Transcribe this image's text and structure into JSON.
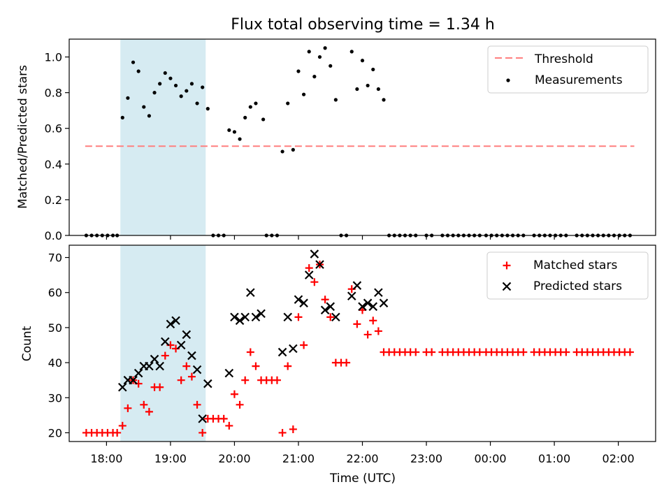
{
  "chart_data": [
    {
      "type": "scatter",
      "title": "Flux total observing time = 1.34 h",
      "ylabel": "Matched/Predicted stars",
      "xlabel": "",
      "ylim": [
        0,
        1.1
      ],
      "yticks": [
        0.0,
        0.2,
        0.4,
        0.6,
        0.8,
        1.0
      ],
      "ytick_labels": [
        "0.0",
        "0.2",
        "0.4",
        "0.6",
        "0.8",
        "1.0"
      ],
      "xlim": [
        "17:25",
        "02:35"
      ],
      "legend_position": "top-right",
      "shaded_interval": {
        "start": "18:13",
        "end": "19:33",
        "color": "#add8e6"
      },
      "series": [
        {
          "name": "Threshold",
          "kind": "dashed-line",
          "color": "#ff7f7f",
          "y": 0.5,
          "x_range": [
            "17:40",
            "02:15"
          ]
        },
        {
          "name": "Measurements",
          "kind": "points",
          "color": "#000000",
          "points": [
            [
              "17:41",
              0
            ],
            [
              "17:46",
              0
            ],
            [
              "17:51",
              0
            ],
            [
              "17:56",
              0
            ],
            [
              "18:01",
              0
            ],
            [
              "18:06",
              0
            ],
            [
              "18:10",
              0
            ],
            [
              "18:15",
              0.66
            ],
            [
              "18:20",
              0.77
            ],
            [
              "18:25",
              0.97
            ],
            [
              "18:30",
              0.92
            ],
            [
              "18:35",
              0.72
            ],
            [
              "18:40",
              0.67
            ],
            [
              "18:45",
              0.8
            ],
            [
              "18:50",
              0.85
            ],
            [
              "18:55",
              0.91
            ],
            [
              "19:00",
              0.88
            ],
            [
              "19:05",
              0.84
            ],
            [
              "19:10",
              0.78
            ],
            [
              "19:15",
              0.81
            ],
            [
              "19:20",
              0.85
            ],
            [
              "19:25",
              0.74
            ],
            [
              "19:30",
              0.83
            ],
            [
              "19:35",
              0.71
            ],
            [
              "19:40",
              0
            ],
            [
              "19:45",
              0
            ],
            [
              "19:50",
              0
            ],
            [
              "19:55",
              0.59
            ],
            [
              "20:00",
              0.58
            ],
            [
              "20:05",
              0.54
            ],
            [
              "20:10",
              0.66
            ],
            [
              "20:15",
              0.72
            ],
            [
              "20:20",
              0.74
            ],
            [
              "20:27",
              0.65
            ],
            [
              "20:30",
              0
            ],
            [
              "20:35",
              0
            ],
            [
              "20:40",
              0
            ],
            [
              "20:45",
              0.47
            ],
            [
              "20:50",
              0.74
            ],
            [
              "20:55",
              0.48
            ],
            [
              "21:00",
              0.92
            ],
            [
              "21:05",
              0.79
            ],
            [
              "21:10",
              1.03
            ],
            [
              "21:15",
              0.89
            ],
            [
              "21:20",
              1.0
            ],
            [
              "21:25",
              1.05
            ],
            [
              "21:30",
              0.95
            ],
            [
              "21:35",
              0.76
            ],
            [
              "21:40",
              0
            ],
            [
              "21:45",
              0
            ],
            [
              "21:50",
              1.03
            ],
            [
              "21:55",
              0.82
            ],
            [
              "22:00",
              0.98
            ],
            [
              "22:05",
              0.84
            ],
            [
              "22:10",
              0.93
            ],
            [
              "22:15",
              0.82
            ],
            [
              "22:20",
              0.76
            ],
            [
              "22:25",
              0
            ],
            [
              "22:30",
              0
            ],
            [
              "22:35",
              0
            ],
            [
              "22:40",
              0
            ],
            [
              "22:45",
              0
            ],
            [
              "22:50",
              0
            ],
            [
              "23:00",
              0
            ],
            [
              "23:05",
              0
            ],
            [
              "23:15",
              0
            ],
            [
              "23:20",
              0
            ],
            [
              "23:25",
              0
            ],
            [
              "23:30",
              0
            ],
            [
              "23:35",
              0
            ],
            [
              "23:40",
              0
            ],
            [
              "23:45",
              0
            ],
            [
              "23:50",
              0
            ],
            [
              "23:56",
              0
            ],
            [
              "00:01",
              0
            ],
            [
              "00:06",
              0
            ],
            [
              "00:11",
              0
            ],
            [
              "00:16",
              0
            ],
            [
              "00:21",
              0
            ],
            [
              "00:26",
              0
            ],
            [
              "00:31",
              0
            ],
            [
              "00:41",
              0
            ],
            [
              "00:46",
              0
            ],
            [
              "00:51",
              0
            ],
            [
              "00:56",
              0
            ],
            [
              "01:01",
              0
            ],
            [
              "01:06",
              0
            ],
            [
              "01:11",
              0
            ],
            [
              "01:21",
              0
            ],
            [
              "01:26",
              0
            ],
            [
              "01:31",
              0
            ],
            [
              "01:36",
              0
            ],
            [
              "01:41",
              0
            ],
            [
              "01:46",
              0
            ],
            [
              "01:51",
              0
            ],
            [
              "01:56",
              0
            ],
            [
              "02:01",
              0
            ],
            [
              "02:06",
              0
            ],
            [
              "02:11",
              0
            ]
          ]
        }
      ]
    },
    {
      "type": "scatter",
      "title": "",
      "ylabel": "Count",
      "xlabel": "Time (UTC)",
      "ylim": [
        17.5,
        73.5
      ],
      "yticks": [
        20,
        30,
        40,
        50,
        60,
        70
      ],
      "ytick_labels": [
        "20",
        "30",
        "40",
        "50",
        "60",
        "70"
      ],
      "xlim": [
        "17:25",
        "02:35"
      ],
      "xticks": [
        "18:00",
        "19:00",
        "20:00",
        "21:00",
        "22:00",
        "23:00",
        "00:00",
        "01:00",
        "02:00"
      ],
      "xtick_labels": [
        "18:00",
        "19:00",
        "20:00",
        "21:00",
        "22:00",
        "23:00",
        "00:00",
        "01:00",
        "02:00"
      ],
      "legend_position": "top-right",
      "shaded_interval": {
        "start": "18:13",
        "end": "19:33",
        "color": "#add8e6"
      },
      "series": [
        {
          "name": "Matched stars",
          "kind": "plus",
          "color": "#ff0000",
          "points": [
            [
              "17:41",
              20
            ],
            [
              "17:46",
              20
            ],
            [
              "17:51",
              20
            ],
            [
              "17:56",
              20
            ],
            [
              "18:01",
              20
            ],
            [
              "18:06",
              20
            ],
            [
              "18:10",
              20
            ],
            [
              "18:15",
              22
            ],
            [
              "18:20",
              27
            ],
            [
              "18:25",
              35
            ],
            [
              "18:30",
              34
            ],
            [
              "18:35",
              28
            ],
            [
              "18:40",
              26
            ],
            [
              "18:45",
              33
            ],
            [
              "18:50",
              33
            ],
            [
              "18:55",
              42
            ],
            [
              "19:00",
              45
            ],
            [
              "19:05",
              44
            ],
            [
              "19:10",
              35
            ],
            [
              "19:15",
              39
            ],
            [
              "19:20",
              36
            ],
            [
              "19:25",
              28
            ],
            [
              "19:30",
              20
            ],
            [
              "19:35",
              24
            ],
            [
              "19:40",
              24
            ],
            [
              "19:45",
              24
            ],
            [
              "19:50",
              24
            ],
            [
              "19:55",
              22
            ],
            [
              "20:00",
              31
            ],
            [
              "20:05",
              28
            ],
            [
              "20:10",
              35
            ],
            [
              "20:15",
              43
            ],
            [
              "20:20",
              39
            ],
            [
              "20:25",
              35
            ],
            [
              "20:30",
              35
            ],
            [
              "20:35",
              35
            ],
            [
              "20:40",
              35
            ],
            [
              "20:45",
              20
            ],
            [
              "20:50",
              39
            ],
            [
              "20:55",
              21
            ],
            [
              "21:00",
              53
            ],
            [
              "21:05",
              45
            ],
            [
              "21:10",
              67
            ],
            [
              "21:15",
              63
            ],
            [
              "21:20",
              68
            ],
            [
              "21:25",
              58
            ],
            [
              "21:30",
              53
            ],
            [
              "21:35",
              40
            ],
            [
              "21:40",
              40
            ],
            [
              "21:45",
              40
            ],
            [
              "21:50",
              61
            ],
            [
              "21:55",
              51
            ],
            [
              "22:00",
              55
            ],
            [
              "22:05",
              48
            ],
            [
              "22:10",
              52
            ],
            [
              "22:15",
              49
            ],
            [
              "22:20",
              43
            ],
            [
              "22:25",
              43
            ],
            [
              "22:30",
              43
            ],
            [
              "22:35",
              43
            ],
            [
              "22:40",
              43
            ],
            [
              "22:45",
              43
            ],
            [
              "22:50",
              43
            ],
            [
              "23:00",
              43
            ],
            [
              "23:05",
              43
            ],
            [
              "23:15",
              43
            ],
            [
              "23:20",
              43
            ],
            [
              "23:25",
              43
            ],
            [
              "23:30",
              43
            ],
            [
              "23:35",
              43
            ],
            [
              "23:40",
              43
            ],
            [
              "23:45",
              43
            ],
            [
              "23:50",
              43
            ],
            [
              "23:56",
              43
            ],
            [
              "00:01",
              43
            ],
            [
              "00:06",
              43
            ],
            [
              "00:11",
              43
            ],
            [
              "00:16",
              43
            ],
            [
              "00:21",
              43
            ],
            [
              "00:26",
              43
            ],
            [
              "00:31",
              43
            ],
            [
              "00:41",
              43
            ],
            [
              "00:46",
              43
            ],
            [
              "00:51",
              43
            ],
            [
              "00:56",
              43
            ],
            [
              "01:01",
              43
            ],
            [
              "01:06",
              43
            ],
            [
              "01:11",
              43
            ],
            [
              "01:21",
              43
            ],
            [
              "01:26",
              43
            ],
            [
              "01:31",
              43
            ],
            [
              "01:36",
              43
            ],
            [
              "01:41",
              43
            ],
            [
              "01:46",
              43
            ],
            [
              "01:51",
              43
            ],
            [
              "01:56",
              43
            ],
            [
              "02:01",
              43
            ],
            [
              "02:06",
              43
            ],
            [
              "02:11",
              43
            ]
          ]
        },
        {
          "name": "Predicted stars",
          "kind": "x",
          "color": "#000000",
          "points": [
            [
              "18:15",
              33
            ],
            [
              "18:20",
              35
            ],
            [
              "18:25",
              35
            ],
            [
              "18:30",
              37
            ],
            [
              "18:35",
              39
            ],
            [
              "18:40",
              39
            ],
            [
              "18:45",
              41
            ],
            [
              "18:50",
              39
            ],
            [
              "18:55",
              46
            ],
            [
              "19:00",
              51
            ],
            [
              "19:05",
              52
            ],
            [
              "19:10",
              45
            ],
            [
              "19:15",
              48
            ],
            [
              "19:20",
              42
            ],
            [
              "19:25",
              38
            ],
            [
              "19:30",
              24
            ],
            [
              "19:35",
              34
            ],
            [
              "19:55",
              37
            ],
            [
              "20:00",
              53
            ],
            [
              "20:05",
              52
            ],
            [
              "20:10",
              53
            ],
            [
              "20:15",
              60
            ],
            [
              "20:20",
              53
            ],
            [
              "20:25",
              54
            ],
            [
              "20:45",
              43
            ],
            [
              "20:50",
              53
            ],
            [
              "20:55",
              44
            ],
            [
              "21:00",
              58
            ],
            [
              "21:05",
              57
            ],
            [
              "21:10",
              65
            ],
            [
              "21:15",
              71
            ],
            [
              "21:20",
              68
            ],
            [
              "21:25",
              55
            ],
            [
              "21:30",
              56
            ],
            [
              "21:35",
              53
            ],
            [
              "21:50",
              59
            ],
            [
              "21:55",
              62
            ],
            [
              "22:00",
              56
            ],
            [
              "22:05",
              57
            ],
            [
              "22:10",
              56
            ],
            [
              "22:15",
              60
            ],
            [
              "22:20",
              57
            ]
          ]
        }
      ]
    }
  ]
}
